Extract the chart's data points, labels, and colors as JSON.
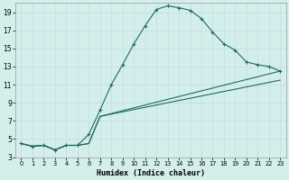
{
  "title": "",
  "xlabel": "Humidex (Indice chaleur)",
  "ylabel": "",
  "background_color": "#d4eeec",
  "line_color": "#1e6b5e",
  "grid_color": "#c0dede",
  "xlim": [
    -0.5,
    23.5
  ],
  "ylim": [
    3,
    20
  ],
  "xticks": [
    0,
    1,
    2,
    3,
    4,
    5,
    6,
    7,
    8,
    9,
    10,
    11,
    12,
    13,
    14,
    15,
    16,
    17,
    18,
    19,
    20,
    21,
    22,
    23
  ],
  "yticks": [
    3,
    5,
    7,
    9,
    11,
    13,
    15,
    17,
    19
  ],
  "curve1_x": [
    0,
    1,
    2,
    3,
    4,
    5,
    6,
    7,
    8,
    9,
    10,
    11,
    12,
    13,
    14,
    15,
    16,
    17,
    18,
    19,
    20,
    21,
    22,
    23
  ],
  "curve1_y": [
    4.5,
    4.2,
    4.3,
    3.8,
    4.3,
    4.3,
    5.5,
    8.2,
    11.0,
    13.2,
    15.5,
    17.5,
    19.3,
    19.7,
    19.5,
    19.2,
    18.3,
    16.8,
    15.5,
    14.8,
    13.5,
    13.2,
    13.0,
    12.5
  ],
  "curve2_x": [
    0,
    1,
    2,
    3,
    4,
    5,
    6,
    7,
    23
  ],
  "curve2_y": [
    4.5,
    4.2,
    4.3,
    3.8,
    4.3,
    4.3,
    4.5,
    7.5,
    12.5
  ],
  "curve3_x": [
    0,
    1,
    2,
    3,
    4,
    5,
    6,
    7,
    23
  ],
  "curve3_y": [
    4.5,
    4.2,
    4.3,
    3.8,
    4.3,
    4.3,
    4.5,
    7.5,
    11.5
  ]
}
